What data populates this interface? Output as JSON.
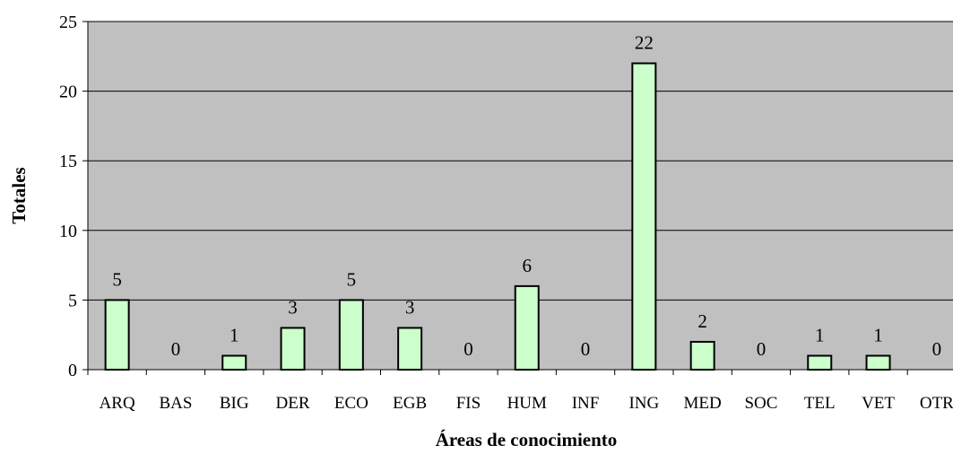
{
  "chart_data": {
    "type": "bar",
    "title": "",
    "xlabel": "Áreas de conocimiento",
    "ylabel": "Totales",
    "categories": [
      "ARQ",
      "BAS",
      "BIG",
      "DER",
      "ECO",
      "EGB",
      "FIS",
      "HUM",
      "INF",
      "ING",
      "MED",
      "SOC",
      "TEL",
      "VET",
      "OTR"
    ],
    "values": [
      5,
      0,
      1,
      3,
      5,
      3,
      0,
      6,
      0,
      22,
      2,
      0,
      1,
      1,
      0
    ],
    "ylim": [
      0,
      25
    ],
    "yticks": [
      0,
      5,
      10,
      15,
      20,
      25
    ],
    "grid": true,
    "legend": "none",
    "colors": {
      "plot_background": "#c0c0c0",
      "bar_fill": "#ccffcc",
      "bar_stroke": "#000000",
      "gridline": "#000000"
    }
  }
}
